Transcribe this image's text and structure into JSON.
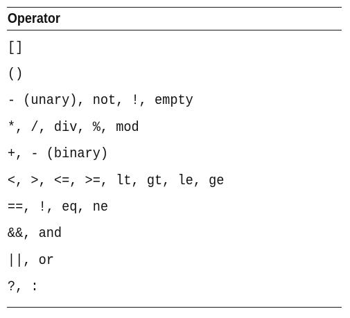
{
  "table": {
    "header": "Operator",
    "rows": [
      "[]",
      "()",
      "- (unary), not, !, empty",
      "*, /, div, %, mod",
      "+, - (binary)",
      "<, >, <=, >=, lt, gt, le, ge",
      "==, !, eq, ne",
      "&&, and",
      "||, or",
      "?, :"
    ]
  }
}
